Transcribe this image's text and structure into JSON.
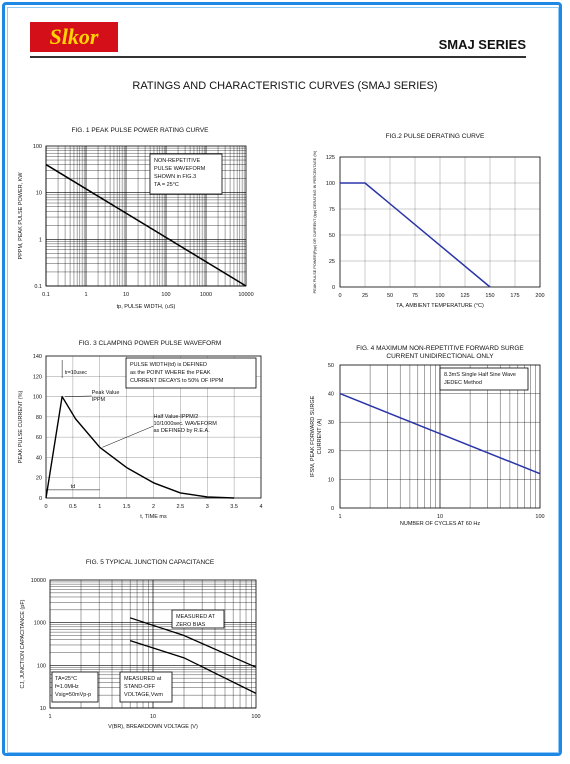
{
  "header": {
    "logo_text": "Slkor",
    "series_title": "SMAJ SERIES",
    "doc_title": "RATINGS AND CHARACTERISTIC CURVES (SMAJ SERIES)"
  },
  "colors": {
    "border": "#1e88e5",
    "logo_bg": "#d50f1a",
    "logo_text": "#ffd400",
    "curve_blue": "#2a35a8"
  },
  "fig1": {
    "title": "FIG. 1 PEAK PULSE POWER RATING CURVE",
    "ylabel": "PPPM, PEAK PULSE POWER, KW",
    "xlabel": "tp, PULSE WIDTH, (uS)",
    "note": [
      "NON-REPETITIVE",
      "PULSE WAVEFORM",
      "SHOWN in FIG.3",
      "TA = 25°C"
    ],
    "xticks": [
      "0.1",
      "1",
      "10",
      "100",
      "1000",
      "10000"
    ],
    "yticks": [
      "100",
      "10",
      "1",
      "0.1"
    ],
    "chart_data": {
      "type": "line",
      "x_scale": "log",
      "y_scale": "log",
      "xlim": [
        0.1,
        10000
      ],
      "ylim": [
        0.1,
        100
      ],
      "series": [
        {
          "x": [
            0.1,
            10000
          ],
          "y": [
            40,
            0.1
          ]
        }
      ]
    }
  },
  "fig2": {
    "title": "FIG.2 PULSE DERATING CURVE",
    "ylabel": "PEAK PULSE POWER(Ppp) OR CURRENT (Ipp) DERATING IN PERCENTAGE (%)",
    "xlabel": "TA, AMBIENT TEMPERATURE (°C)",
    "xticks": [
      "0",
      "25",
      "50",
      "75",
      "100",
      "125",
      "150",
      "175",
      "200"
    ],
    "yticks": [
      "0",
      "25",
      "50",
      "75",
      "100",
      "125"
    ],
    "chart_data": {
      "type": "line",
      "xlim": [
        0,
        200
      ],
      "ylim": [
        0,
        125
      ],
      "series": [
        {
          "x": [
            0,
            25,
            150
          ],
          "y": [
            100,
            100,
            0
          ]
        }
      ]
    }
  },
  "fig3": {
    "title": "FIG. 3 CLAMPING POWER PULSE WAVEFORM",
    "ylabel": "PEAK PULSE CURRENT (%)",
    "xlabel": "t, TIME ms",
    "note": [
      "PULSE WIDTH(td) is DEFINED",
      "as the POINT WHERE the PEAK",
      "CURRENT DECAYS to 50% OF IPPM"
    ],
    "tr": "tr=10usec",
    "peak": [
      "Peak Value",
      "IPPM"
    ],
    "half": [
      "Half Value-IPPM/2",
      "10/1000sec. WAVEFORM",
      "as DEFINED by R.E.A."
    ],
    "td": "td",
    "xticks": [
      "0",
      "0.5",
      "1",
      "1.5",
      "2",
      "2.5",
      "3",
      "3.5",
      "4"
    ],
    "yticks": [
      "0",
      "20",
      "40",
      "60",
      "80",
      "100",
      "120",
      "140"
    ],
    "chart_data": {
      "type": "line",
      "xlim": [
        0,
        4
      ],
      "ylim": [
        0,
        140
      ],
      "series": [
        {
          "x": [
            0,
            0.3,
            0.55,
            1,
            1.5,
            2,
            2.5,
            3,
            3.5
          ],
          "y": [
            0,
            100,
            78,
            50,
            30,
            15,
            5,
            1,
            0
          ]
        }
      ]
    }
  },
  "fig4": {
    "title": [
      "FIG. 4 MAXIMUM NON-REPETITIVE FORWARD SURGE",
      "CURRENT UNIDIRECTIONAL ONLY"
    ],
    "ylabel": [
      "IFSM, PEAK FORWARD SURGE",
      "CURRENT (A)"
    ],
    "xlabel": "NUMBER OF CYCLES AT 60 Hz",
    "note": [
      "8.3mS Single Half Sine Wave",
      "JEDEC Method"
    ],
    "xticks": [
      "1",
      "10",
      "100"
    ],
    "yticks": [
      "0",
      "10",
      "20",
      "30",
      "40",
      "50"
    ],
    "chart_data": {
      "type": "line",
      "x_scale": "log",
      "xlim": [
        1,
        100
      ],
      "ylim": [
        0,
        50
      ],
      "series": [
        {
          "x": [
            1,
            10,
            100
          ],
          "y": [
            40,
            26,
            12
          ]
        }
      ]
    }
  },
  "fig5": {
    "title": "FIG. 5 TYPICAL JUNCTION CAPACITANCE",
    "ylabel": "CJ, JUNCTION CAPACITANCE (pF)",
    "xlabel": "V(BR), BREAKDOWN VOLTAGE (V)",
    "zero": [
      "MEASURED AT",
      "ZERO BIAS"
    ],
    "standoff": [
      "MEASURED at",
      "STAND-OFF",
      "VOLTAGE,Vwm"
    ],
    "cond": [
      "TA=25°C",
      "f=1.0MHz",
      "Vsig=50mVp-p"
    ],
    "xticks": [
      "1",
      "10",
      "100"
    ],
    "yticks": [
      "10000",
      "1000",
      "100",
      "10"
    ],
    "chart_data": {
      "type": "line",
      "x_scale": "log",
      "y_scale": "log",
      "xlim": [
        1,
        100
      ],
      "ylim": [
        10,
        10000
      ],
      "series": [
        {
          "name": "MEASURED AT ZERO BIAS",
          "x": [
            6,
            20,
            100
          ],
          "y": [
            1300,
            500,
            90
          ]
        },
        {
          "name": "MEASURED at STAND-OFF VOLTAGE,Vwm",
          "x": [
            6,
            20,
            100
          ],
          "y": [
            380,
            150,
            22
          ]
        }
      ]
    }
  }
}
